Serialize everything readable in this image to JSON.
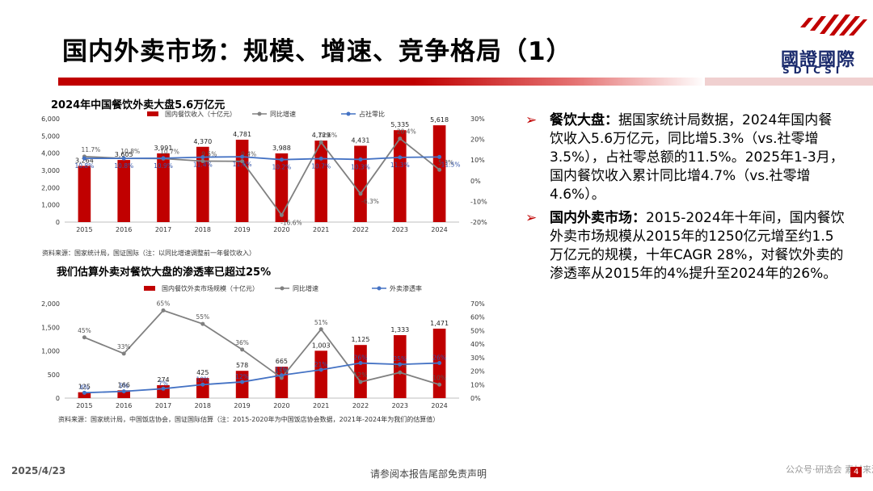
{
  "title": "国内外卖市场：规模、增速、竞争格局（1）",
  "logo": {
    "cn": "國證國際",
    "en": "SDICSI"
  },
  "chart1": {
    "title": "2024年中国餐饮外卖大盘5.6万亿元",
    "legend": [
      "国内餐饮收入（十亿元）",
      "同比增速",
      "占社零比"
    ],
    "source": "资料来源：国家统计局，国证国际（注：以同比增速调整前一年餐饮收入）"
  },
  "chart2": {
    "title": "我们估算外卖对餐饮大盘的渗透率已超过25%",
    "legend": [
      "国内餐饮外卖市场规模（十亿元）",
      "同比增速",
      "外卖渗透率"
    ],
    "source": "资料来源：国家统计局，中国饭店协会，国证国际估算（注：2015-2020年为中国饭店协会数据，2021年-2024年为我们的估算值）"
  },
  "chart_data": [
    {
      "type": "bar",
      "title": "2024年中国餐饮外卖大盘5.6万亿元",
      "categories": [
        "2015",
        "2016",
        "2017",
        "2018",
        "2019",
        "2020",
        "2021",
        "2022",
        "2023",
        "2024"
      ],
      "series": [
        {
          "name": "国内餐饮收入（十亿元）",
          "type": "bar",
          "axis": "left",
          "values": [
            3264,
            3605,
            3991,
            4370,
            4781,
            3988,
            4729,
            4431,
            5335,
            5618
          ],
          "labels": [
            "3,264",
            "3,605",
            "3,991",
            "4,370",
            "4,781",
            "3,988",
            "4,729",
            "4,431",
            "5,335",
            "5,618"
          ]
        },
        {
          "name": "同比增速",
          "type": "line",
          "axis": "right",
          "values": [
            11.7,
            10.8,
            10.7,
            9.5,
            9.4,
            -16.6,
            18.6,
            -6.3,
            20.4,
            5.3
          ],
          "labels": [
            "11.7%",
            "10.8%",
            "10.7%",
            "9.5%",
            "9.4%",
            "-16.6%",
            "18.6%",
            "-6.3%",
            "20.4%",
            "5.3%"
          ]
        },
        {
          "name": "占社零比",
          "type": "line",
          "axis": "right",
          "values": [
            10.8,
            10.8,
            10.9,
            11.4,
            11.6,
            10.2,
            10.7,
            10.3,
            11.3,
            11.5
          ],
          "labels": [
            "10.8%",
            "10.8%",
            "10.9%",
            "11.4%",
            "11.6%",
            "10.2%",
            "10.7%",
            "10.3%",
            "11.3%",
            "11.5%"
          ]
        }
      ],
      "ylim_left": [
        0,
        6000
      ],
      "yticks_left": [
        "0",
        "1,000",
        "2,000",
        "3,000",
        "4,000",
        "5,000",
        "6,000"
      ],
      "ylim_right": [
        -20,
        30
      ],
      "yticks_right": [
        "-20%",
        "-10%",
        "0%",
        "10%",
        "20%",
        "30%"
      ],
      "legend_position": "top"
    },
    {
      "type": "bar",
      "title": "我们估算外卖对餐饮大盘的渗透率已超过25%",
      "categories": [
        "2015",
        "2016",
        "2017",
        "2018",
        "2019",
        "2020",
        "2021",
        "2022",
        "2023",
        "2024"
      ],
      "series": [
        {
          "name": "国内餐饮外卖市场规模（十亿元）",
          "type": "bar",
          "axis": "left",
          "values": [
            125,
            166,
            274,
            425,
            578,
            665,
            1003,
            1125,
            1333,
            1471
          ],
          "labels": [
            "125",
            "166",
            "274",
            "425",
            "578",
            "665",
            "1,003",
            "1,125",
            "1,333",
            "1,471"
          ]
        },
        {
          "name": "同比增速",
          "type": "line",
          "axis": "right",
          "values": [
            45,
            33,
            65,
            55,
            36,
            15,
            51,
            12,
            19,
            10
          ],
          "labels": [
            "45%",
            "33%",
            "65%",
            "55%",
            "36%",
            "15%",
            "51%",
            "12%",
            "19%",
            "10%"
          ]
        },
        {
          "name": "外卖渗透率",
          "type": "line",
          "axis": "right",
          "values": [
            4,
            5,
            7,
            10,
            12,
            17,
            21,
            26,
            25,
            26
          ],
          "labels": [
            "4%",
            "5%",
            "7%",
            "10%",
            "12%",
            "17%",
            "21%",
            "26%",
            "25%",
            "26%"
          ]
        }
      ],
      "ylim_left": [
        0,
        2000
      ],
      "yticks_left": [
        "0",
        "500",
        "1,000",
        "1,500",
        "2,000"
      ],
      "ylim_right": [
        0,
        70
      ],
      "yticks_right": [
        "0%",
        "10%",
        "20%",
        "30%",
        "40%",
        "50%",
        "60%",
        "70%"
      ],
      "legend_position": "top"
    }
  ],
  "bullets": [
    {
      "heading": "餐饮大盘：",
      "text": "据国家统计局数据，2024年国内餐饮收入5.6万亿元，同比增5.3%（vs.社零增3.5%），占社零总额的11.5%。2025年1-3月，国内餐饮收入累计同比增4.7%（vs.社零增4.6%）。"
    },
    {
      "heading": "国内外卖市场：",
      "text": "2015-2024年十年间，国内餐饮外卖市场规模从2015年的1250亿元增至约1.5万亿元的规模，十年CAGR 28%，对餐饮外卖的渗透率从2015年的4%提升至2024年的26%。"
    }
  ],
  "footer": {
    "date": "2025/4/23",
    "disclaimer": "请参阅本报告尾部免责声明",
    "page": "4",
    "watermark": "公众号·研选会 素材来源于网络"
  },
  "colors": {
    "bar": "#c00000",
    "growth_line": "#808080",
    "ratio_line": "#4472c4",
    "accent": "#c00000"
  }
}
